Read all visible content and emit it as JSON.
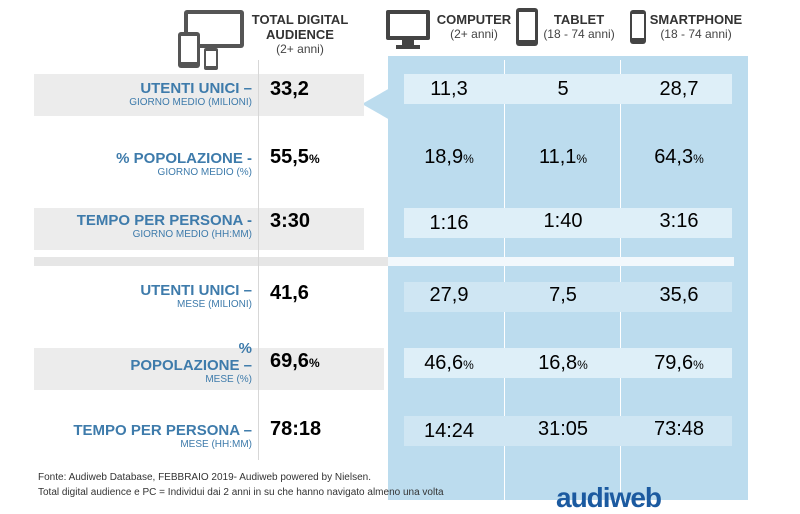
{
  "header": {
    "total": {
      "title_1": "TOTAL DIGITAL",
      "title_2": "AUDIENCE",
      "sub": "(2+ anni)"
    },
    "computer": {
      "title": "COMPUTER",
      "sub": "(2+ anni)"
    },
    "tablet": {
      "title": "TABLET",
      "sub": "(18 - 74 anni)"
    },
    "smartphone": {
      "title": "SMARTPHONE",
      "sub": "(18 - 74 anni)"
    }
  },
  "rows": [
    {
      "label": "UTENTI UNICI –",
      "sub": "GIORNO MEDIO (MILIONI)",
      "total": "33,2",
      "total_unit": "",
      "computer": "11,3",
      "tablet": "5",
      "smartphone": "28,7",
      "unit": ""
    },
    {
      "label": "% POPOLAZIONE -",
      "sub": "GIORNO MEDIO (%)",
      "total": "55,5",
      "total_unit": "%",
      "computer": "18,9",
      "tablet": "11,1",
      "smartphone": "64,3",
      "unit": "%"
    },
    {
      "label": "TEMPO PER PERSONA -",
      "sub": "GIORNO MEDIO (HH:MM)",
      "total": "3:30",
      "total_unit": "",
      "computer": "1:16",
      "tablet": "1:40",
      "smartphone": "3:16",
      "unit": ""
    },
    {
      "label": "UTENTI UNICI –",
      "sub": "MESE (MILIONI)",
      "total": "41,6",
      "total_unit": "",
      "computer": "27,9",
      "tablet": "7,5",
      "smartphone": "35,6",
      "unit": ""
    },
    {
      "label_1": "%",
      "label": "POPOLAZIONE –",
      "sub": "MESE (%)",
      "total": "69,6",
      "total_unit": "%",
      "computer": "46,6",
      "tablet": "16,8",
      "smartphone": "79,6",
      "unit": "%"
    },
    {
      "label": "TEMPO PER PERSONA –",
      "sub": "MESE (HH:MM)",
      "total": "78:18",
      "total_unit": "",
      "computer": "14:24",
      "tablet": "31:05",
      "smartphone": "73:48",
      "unit": ""
    }
  ],
  "footer": {
    "line1": "Fonte: Audiweb Database, FEBBRAIO 2019- Audiweb powered by Nielsen.",
    "line2": "Total digital audience e PC = Individui dai 2 anni in su che hanno navigato almeno una volta"
  },
  "logo": "audiweb",
  "colors": {
    "panel": "#bcdcee",
    "label": "#3e7bab"
  }
}
